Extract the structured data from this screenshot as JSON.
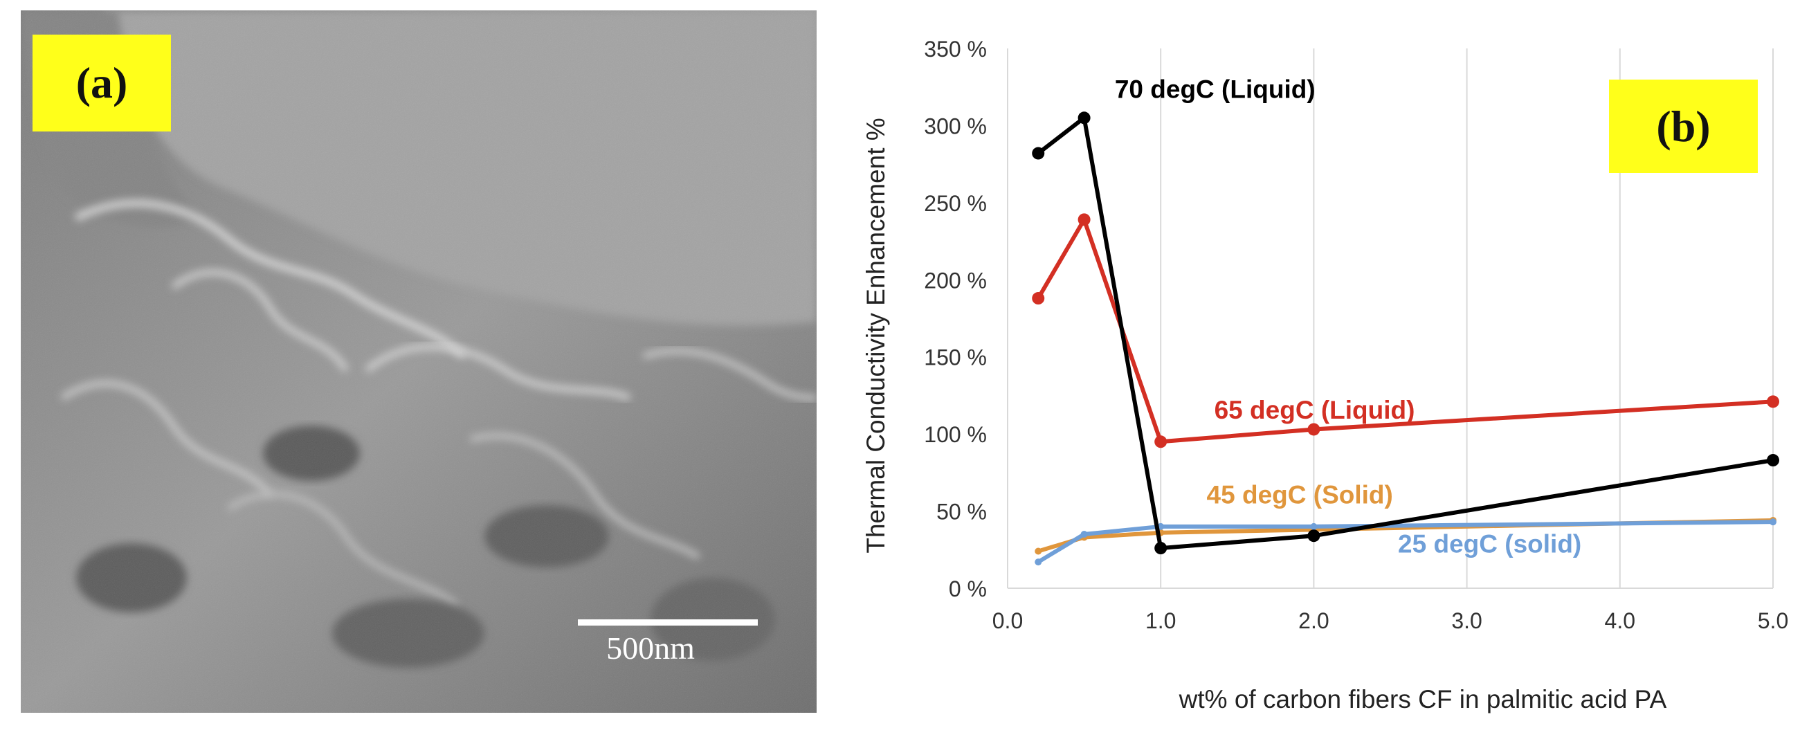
{
  "panel_a": {
    "label": "(a)",
    "scale_bar_label": "500nm"
  },
  "chart_data": {
    "type": "line",
    "panel_label": "(b)",
    "title": "",
    "xlabel": "wt% of carbon fibers CF in palmitic acid PA",
    "ylabel": "Thermal Conductivity Enhancement %",
    "xlim": [
      0.0,
      5.0
    ],
    "ylim": [
      0,
      350
    ],
    "xticks": [
      0.0,
      1.0,
      2.0,
      3.0,
      4.0,
      5.0
    ],
    "xtick_labels": [
      "0.0",
      "1.0",
      "2.0",
      "3.0",
      "4.0",
      "5.0"
    ],
    "yticks": [
      0,
      50,
      100,
      150,
      200,
      250,
      300,
      350
    ],
    "ytick_labels": [
      "0 %",
      "50 %",
      "100 %",
      "150 %",
      "200 %",
      "250 %",
      "300 %",
      "350 %"
    ],
    "grid": "vertical",
    "x": [
      0.2,
      0.5,
      1.0,
      2.0,
      5.0
    ],
    "series": [
      {
        "name": "70 degC (Liquid)",
        "color": "#000000",
        "values": [
          282,
          305,
          26,
          34,
          83
        ],
        "markers": true,
        "label_at": [
          0.7,
          318
        ]
      },
      {
        "name": "65 degC (Liquid)",
        "color": "#d32f23",
        "values": [
          188,
          239,
          95,
          103,
          121
        ],
        "markers": true,
        "label_at": [
          1.35,
          110
        ]
      },
      {
        "name": "45 degC (Solid)",
        "color": "#e0963c",
        "values": [
          24,
          33,
          36,
          38,
          44
        ],
        "markers": false,
        "label_at": [
          1.3,
          55
        ]
      },
      {
        "name": "25 degC (solid)",
        "color": "#6f9fd8",
        "values": [
          17,
          35,
          40,
          40,
          43
        ],
        "markers": false,
        "label_at": [
          2.55,
          23
        ]
      }
    ]
  }
}
